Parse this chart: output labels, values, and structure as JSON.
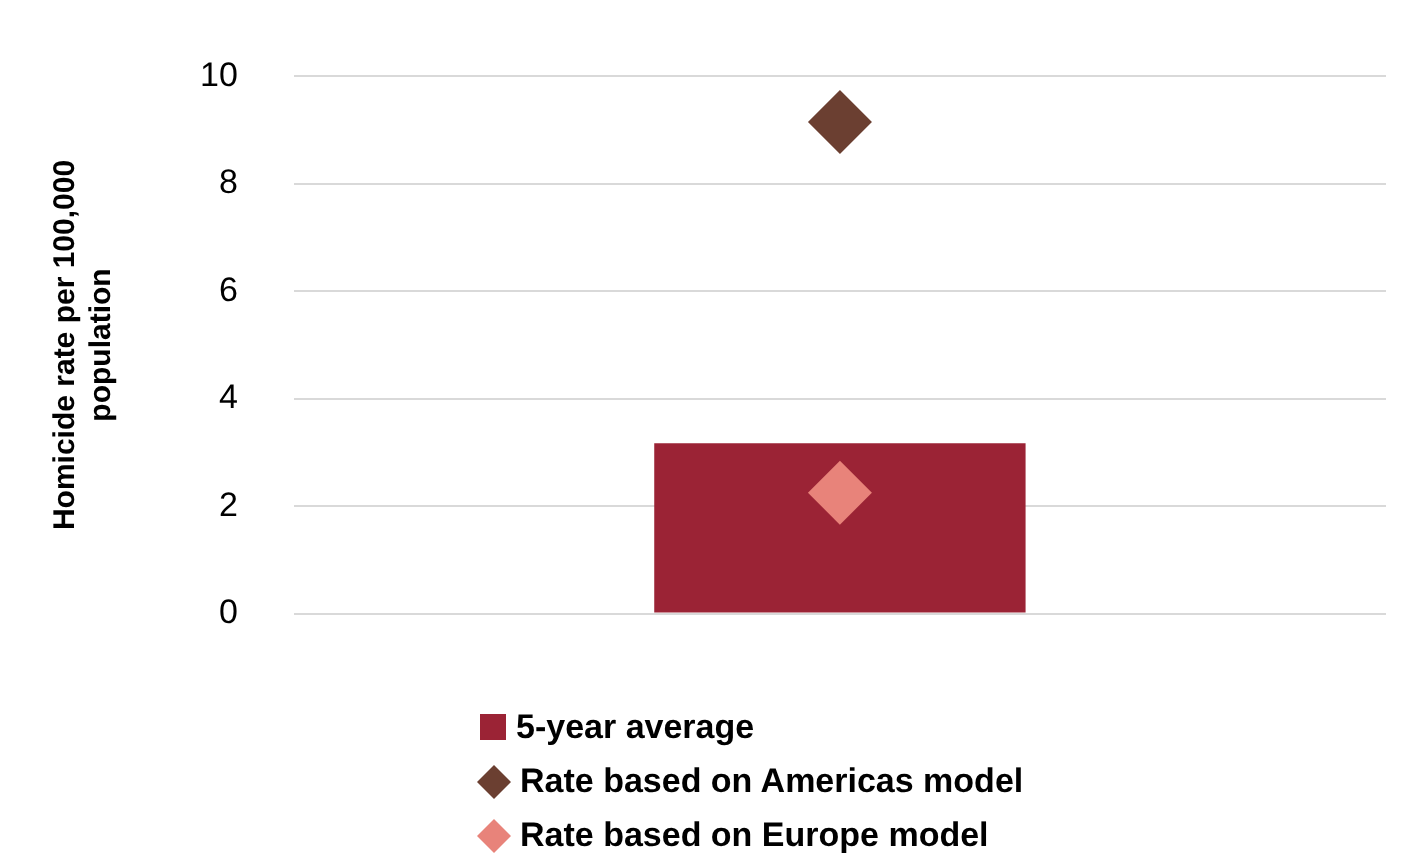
{
  "chart_data": {
    "type": "bar",
    "ylabel": "Homicide rate per 100,000 population",
    "categories": [
      null
    ],
    "series": [
      {
        "name": "5-year average",
        "color": "#9b2335",
        "values": [
          3.17
        ]
      },
      {
        "name": "Rate based on Americas model",
        "type": "scatter",
        "marker": "diamond",
        "color": "#6b3f31",
        "values": [
          9.15
        ]
      },
      {
        "name": "Rate based on Europe model",
        "type": "scatter",
        "marker": "diamond",
        "color": "#e8837a",
        "values": [
          2.25
        ]
      }
    ],
    "ylim": [
      0,
      10
    ],
    "yticks": [
      0,
      2,
      4,
      6,
      8,
      10
    ],
    "grid": "y",
    "legend": "bottom"
  }
}
